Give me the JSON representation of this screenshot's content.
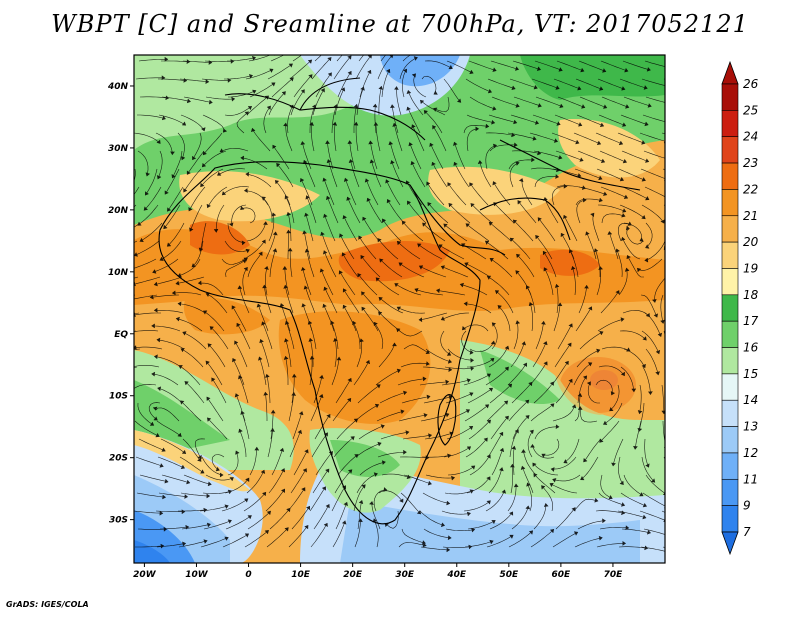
{
  "title": "WBPT [C] and Sreamline at 700hPa, VT: 2017052121",
  "credit": "GrADS: IGES/COLA",
  "map": {
    "lon_range": [
      -22,
      80
    ],
    "lat_range": [
      -37,
      45
    ],
    "lon_ticks": [
      {
        "value": -20,
        "label": "20W"
      },
      {
        "value": -10,
        "label": "10W"
      },
      {
        "value": 0,
        "label": "0"
      },
      {
        "value": 10,
        "label": "10E"
      },
      {
        "value": 20,
        "label": "20E"
      },
      {
        "value": 30,
        "label": "30E"
      },
      {
        "value": 40,
        "label": "40E"
      },
      {
        "value": 50,
        "label": "50E"
      },
      {
        "value": 60,
        "label": "60E"
      },
      {
        "value": 70,
        "label": "70E"
      }
    ],
    "lat_ticks": [
      {
        "value": 40,
        "label": "40N"
      },
      {
        "value": 30,
        "label": "30N"
      },
      {
        "value": 20,
        "label": "20N"
      },
      {
        "value": 10,
        "label": "10N"
      },
      {
        "value": 0,
        "label": "EQ"
      },
      {
        "value": -10,
        "label": "10S"
      },
      {
        "value": -20,
        "label": "20S"
      },
      {
        "value": -30,
        "label": "30S"
      }
    ]
  },
  "colorbar": {
    "levels": [
      "7",
      "9",
      "11",
      "12",
      "13",
      "14",
      "15",
      "16",
      "17",
      "18",
      "19",
      "20",
      "21",
      "22",
      "23",
      "24",
      "25",
      "26"
    ],
    "colors": [
      "#1e6ee0",
      "#2f83ee",
      "#4a98f4",
      "#6fb0f8",
      "#9ccaf7",
      "#c6e0fa",
      "#e6f7f7",
      "#b0e8a0",
      "#6fd06a",
      "#3fb84a",
      "#fff3a8",
      "#fbd37a",
      "#f6b04a",
      "#f39422",
      "#ee6d12",
      "#e0441a",
      "#cc1e10",
      "#a80f08",
      "#a80f08"
    ]
  }
}
